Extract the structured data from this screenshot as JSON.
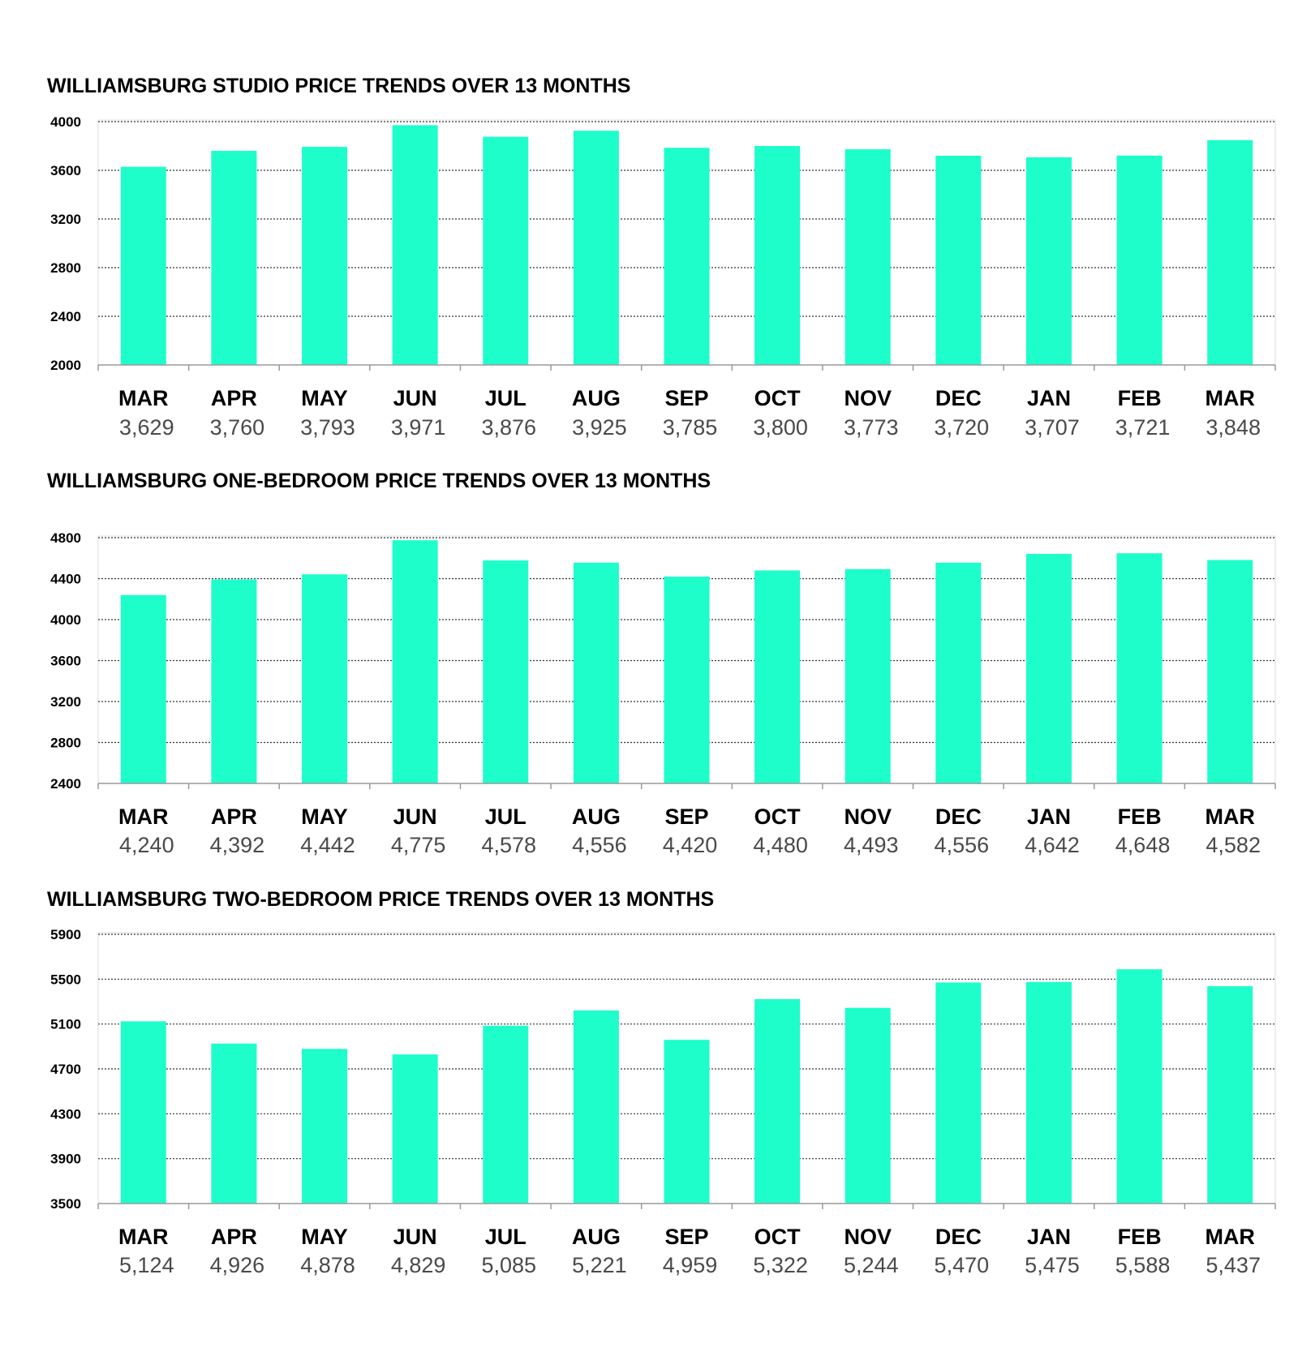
{
  "colors": {
    "bar": "#1dfecb",
    "axis": "#9a9a9a",
    "grid": "#333333",
    "value_text": "#4a4a4a"
  },
  "chart_data": [
    {
      "type": "bar",
      "title": "WILLIAMSBURG STUDIO PRICE TRENDS OVER 13 MONTHS",
      "xlabel": "",
      "ylabel": "",
      "categories": [
        "MAR",
        "APR",
        "MAY",
        "JUN",
        "JUL",
        "AUG",
        "SEP",
        "OCT",
        "NOV",
        "DEC",
        "JAN",
        "FEB",
        "MAR"
      ],
      "values": [
        3629,
        3760,
        3793,
        3971,
        3876,
        3925,
        3785,
        3800,
        3773,
        3720,
        3707,
        3721,
        3848
      ],
      "value_labels": [
        "3,629",
        "3,760",
        "3,793",
        "3,971",
        "3,876",
        "3,925",
        "3,785",
        "3,800",
        "3,773",
        "3,720",
        "3,707",
        "3,721",
        "3,848"
      ],
      "yticks": [
        2000,
        2400,
        2800,
        3200,
        3600,
        4000
      ],
      "ylim": [
        2000,
        4000
      ],
      "grid": true
    },
    {
      "type": "bar",
      "title": "WILLIAMSBURG ONE-BEDROOM PRICE TRENDS OVER 13 MONTHS",
      "xlabel": "",
      "ylabel": "",
      "categories": [
        "MAR",
        "APR",
        "MAY",
        "JUN",
        "JUL",
        "AUG",
        "SEP",
        "OCT",
        "NOV",
        "DEC",
        "JAN",
        "FEB",
        "MAR"
      ],
      "values": [
        4240,
        4392,
        4442,
        4775,
        4578,
        4556,
        4420,
        4480,
        4493,
        4556,
        4642,
        4648,
        4582
      ],
      "value_labels": [
        "4,240",
        "4,392",
        "4,442",
        "4,775",
        "4,578",
        "4,556",
        "4,420",
        "4,480",
        "4,493",
        "4,556",
        "4,642",
        "4,648",
        "4,582"
      ],
      "yticks": [
        2400,
        2800,
        3200,
        3600,
        4000,
        4400,
        4800
      ],
      "ylim": [
        2400,
        4800
      ],
      "grid": true
    },
    {
      "type": "bar",
      "title": "WILLIAMSBURG TWO-BEDROOM PRICE TRENDS OVER 13 MONTHS",
      "xlabel": "",
      "ylabel": "",
      "categories": [
        "MAR",
        "APR",
        "MAY",
        "JUN",
        "JUL",
        "AUG",
        "SEP",
        "OCT",
        "NOV",
        "DEC",
        "JAN",
        "FEB",
        "MAR"
      ],
      "values": [
        5124,
        4926,
        4878,
        4829,
        5085,
        5221,
        4959,
        5322,
        5244,
        5470,
        5475,
        5588,
        5437
      ],
      "value_labels": [
        "5,124",
        "4,926",
        "4,878",
        "4,829",
        "5,085",
        "5,221",
        "4,959",
        "5,322",
        "5,244",
        "5,470",
        "5,475",
        "5,588",
        "5,437"
      ],
      "yticks": [
        3500,
        3900,
        4300,
        4700,
        5100,
        5500,
        5900
      ],
      "ylim": [
        3500,
        5900
      ],
      "grid": true
    }
  ]
}
